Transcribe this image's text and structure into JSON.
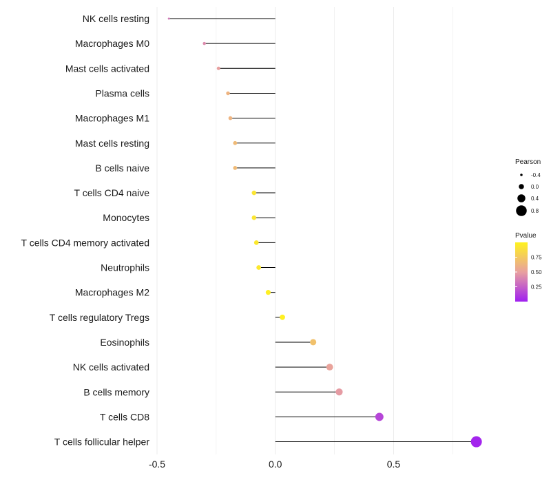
{
  "chart_data": {
    "type": "lollipop",
    "categories": [
      "NK cells resting",
      "Macrophages M0",
      "Mast cells activated",
      "Plasma cells",
      "Macrophages M1",
      "Mast cells resting",
      "B cells naive",
      "T cells CD4 naive",
      "Monocytes",
      "T cells CD4 memory activated",
      "Neutrophils",
      "Macrophages M2",
      "T cells regulatory  Tregs ",
      "Eosinophils",
      "NK cells activated",
      "B cells memory",
      "T cells CD8",
      "T cells follicular helper"
    ],
    "values": [
      -0.45,
      -0.3,
      -0.24,
      -0.2,
      -0.19,
      -0.17,
      -0.17,
      -0.09,
      -0.09,
      -0.08,
      -0.07,
      -0.03,
      0.03,
      0.16,
      0.23,
      0.27,
      0.44,
      0.85
    ],
    "pvalues": [
      0.35,
      0.42,
      0.5,
      0.62,
      0.62,
      0.66,
      0.66,
      0.92,
      0.92,
      0.94,
      0.94,
      0.98,
      0.99,
      0.7,
      0.52,
      0.48,
      0.15,
      0.02
    ],
    "xlim": [
      -0.5,
      0.95
    ],
    "xticks": [
      -0.5,
      0.0,
      0.5
    ],
    "xtick_labels": [
      "-0.5",
      "0.0",
      "0.5"
    ],
    "grid": true,
    "legend_position": "right",
    "size_legend": {
      "title": "Pearson",
      "values": [
        -0.4,
        0.0,
        0.4,
        0.8
      ],
      "labels": [
        "-0.4",
        "0.0",
        "0.4",
        "0.8"
      ]
    },
    "color_legend": {
      "title": "Pvalue",
      "tick_values": [
        0.75,
        0.5,
        0.25
      ],
      "tick_labels": [
        "0.75",
        "0.50",
        "0.25"
      ],
      "low_color": "#a020f0",
      "mid_color": "#e8a0a0",
      "high_color": "#fff21f"
    },
    "stem_color": "#000000",
    "grid_color": "#ebebeb"
  }
}
